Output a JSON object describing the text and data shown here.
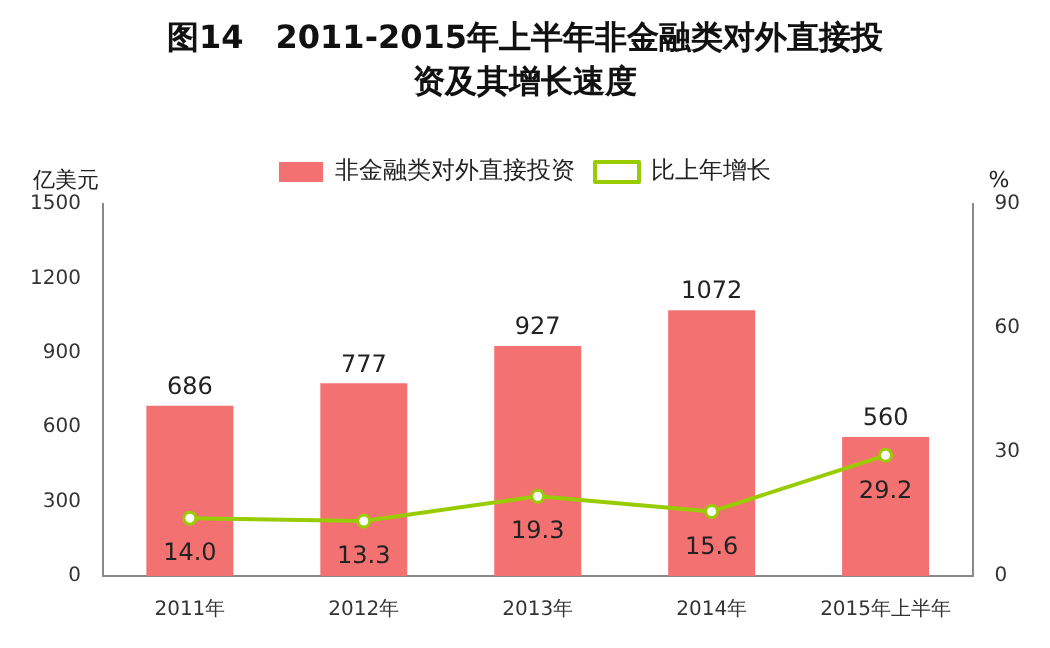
{
  "chart_data": {
    "type": "bar",
    "title": "图14　2011-2015年上半年非金融类对外直接投资及其增长速度",
    "ylabel": "亿美元",
    "y2label": "%",
    "categories": [
      "2011年",
      "2012年",
      "2013年",
      "2014年",
      "2015年上半年"
    ],
    "series": [
      {
        "name": "非金融类对外直接投资",
        "color": "#f47171",
        "values": [
          686,
          777,
          927,
          1072,
          560
        ]
      },
      {
        "name": "比上年增长",
        "type": "line",
        "axis": "y2",
        "color": "#99cc00",
        "marker": "circle",
        "values": [
          14.0,
          13.3,
          19.3,
          15.6,
          29.2
        ],
        "value_labels": [
          "14.0",
          "13.3",
          "19.3",
          "15.6",
          "29.2"
        ]
      }
    ],
    "ylim": [
      0,
      1500
    ],
    "yticks": [
      0,
      300,
      600,
      900,
      1200,
      1500
    ],
    "y2lim": [
      0,
      90
    ],
    "y2ticks": [
      0,
      30,
      60,
      90
    ],
    "data_labels": true,
    "legend": "top",
    "grid": false
  }
}
